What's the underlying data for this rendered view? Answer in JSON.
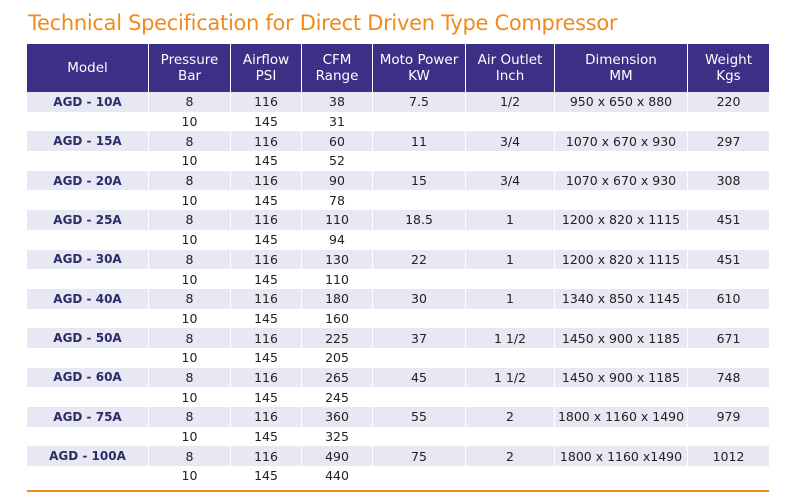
{
  "title": "Technical Specification for Direct Driven Type Compressor",
  "headers": [
    "Model",
    "Pressure\nBar",
    "Airflow\nPSI",
    "CFM\nRange",
    "Moto Power\nKW",
    "Air Outlet\nInch",
    "Dimension\nMM",
    "Weight\nKgs"
  ],
  "rows": [
    [
      "AGD - 10A",
      "8",
      "116",
      "38",
      "7.5",
      "1/2",
      "950 x 650 x 880",
      "220"
    ],
    [
      "",
      "10",
      "145",
      "31",
      "",
      "",
      "",
      ""
    ],
    [
      "AGD - 15A",
      "8",
      "116",
      "60",
      "11",
      "3/4",
      "1070  x 670 x 930",
      "297"
    ],
    [
      "",
      "10",
      "145",
      "52",
      "",
      "",
      "",
      ""
    ],
    [
      "AGD - 20A",
      "8",
      "116",
      "90",
      "15",
      "3/4",
      "1070 x 670 x 930",
      "308"
    ],
    [
      "",
      "10",
      "145",
      "78",
      "",
      "",
      "",
      ""
    ],
    [
      "AGD - 25A",
      "8",
      "116",
      "110",
      "18.5",
      "1",
      "1200 x 820 x 1115",
      "451"
    ],
    [
      "",
      "10",
      "145",
      "94",
      "",
      "",
      "",
      ""
    ],
    [
      "AGD - 30A",
      "8",
      "116",
      "130",
      "22",
      "1",
      "1200 x 820 x 1115",
      "451"
    ],
    [
      "",
      "10",
      "145",
      "110",
      "",
      "",
      "",
      ""
    ],
    [
      "AGD - 40A",
      "8",
      "116",
      "180",
      "30",
      "1",
      "1340 x 850 x 1145",
      "610"
    ],
    [
      "",
      "10",
      "145",
      "160",
      "",
      "",
      "",
      ""
    ],
    [
      "AGD - 50A",
      "8",
      "116",
      "225",
      "37",
      "1 1/2",
      "1450 x 900 x 1185",
      "671"
    ],
    [
      "",
      "10",
      "145",
      "205",
      "",
      "",
      "",
      ""
    ],
    [
      "AGD - 60A",
      "8",
      "116",
      "265",
      "45",
      "1 1/2",
      "1450 x 900 x 1185",
      "748"
    ],
    [
      "",
      "10",
      "145",
      "245",
      "",
      "",
      "",
      ""
    ],
    [
      "AGD - 75A",
      "8",
      "116",
      "360",
      "55",
      "2",
      "1800 x 1160 x 1490",
      "979"
    ],
    [
      "",
      "10",
      "145",
      "325",
      "",
      "",
      "",
      ""
    ],
    [
      "AGD - 100A",
      "8",
      "116",
      "490",
      "75",
      "2",
      "1800 x 1160 x1490",
      "1012"
    ],
    [
      "",
      "10",
      "145",
      "440",
      "",
      "",
      "",
      ""
    ]
  ],
  "colors": {
    "title": "#f08a1c",
    "header_bg": "#3c2f86",
    "row_shade": "#e7e8f3",
    "rule": "#f08a1c"
  }
}
